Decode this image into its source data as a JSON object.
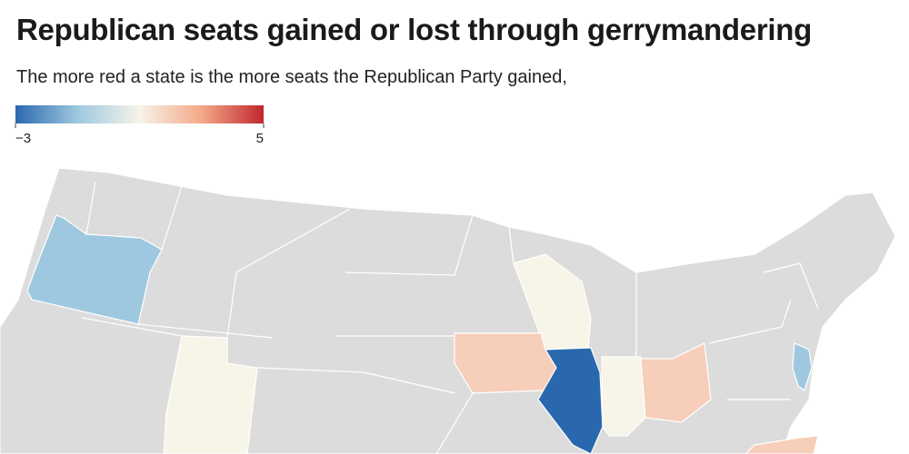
{
  "title": "Republican seats gained or lost through gerrymandering",
  "subtitle": "The more red a state is the more seats the Republican Party gained,",
  "scale": {
    "lim": [
      -3,
      5
    ],
    "ticks": [
      {
        "value": -3,
        "label": "−3"
      },
      5
    ],
    "colors": [
      "#2a68ae",
      "#9ec8e0",
      "#f7f4e8",
      "#f4a88a",
      "#c0272d"
    ]
  },
  "values": [
    -1,
    1,
    1,
    2,
    -3,
    1,
    2,
    -1,
    2
  ],
  "no_data_color": "#dcdcdc"
}
